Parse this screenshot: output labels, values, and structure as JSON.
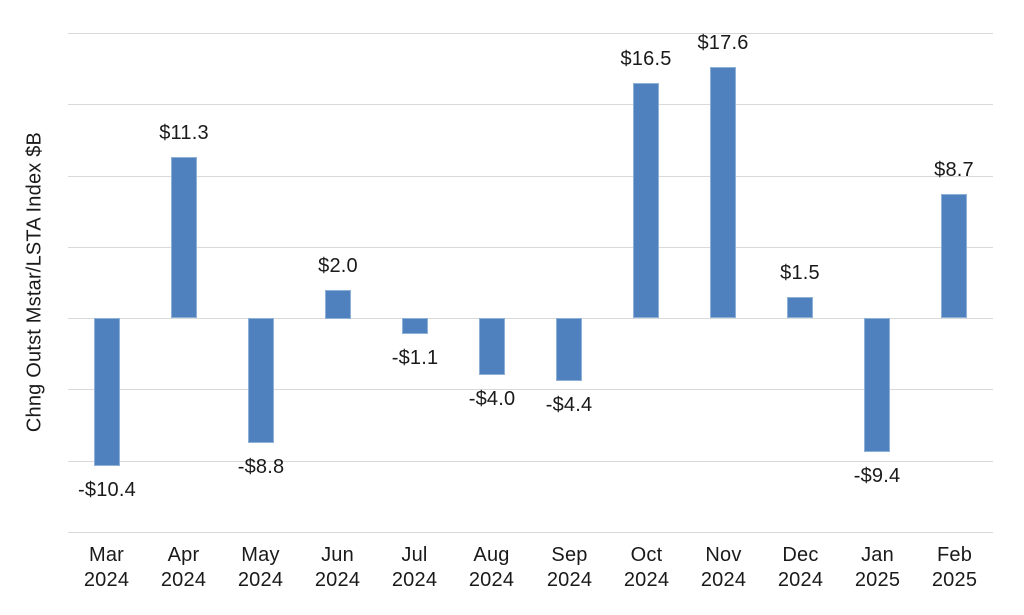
{
  "chart_data": {
    "type": "bar",
    "title": "",
    "xlabel": "",
    "ylabel": "Chng Outst Mstar/LSTA Index $B",
    "categories": [
      {
        "month": "Mar",
        "year": "2024"
      },
      {
        "month": "Apr",
        "year": "2024"
      },
      {
        "month": "May",
        "year": "2024"
      },
      {
        "month": "Jun",
        "year": "2024"
      },
      {
        "month": "Jul",
        "year": "2024"
      },
      {
        "month": "Aug",
        "year": "2024"
      },
      {
        "month": "Sep",
        "year": "2024"
      },
      {
        "month": "Oct",
        "year": "2024"
      },
      {
        "month": "Nov",
        "year": "2024"
      },
      {
        "month": "Dec",
        "year": "2024"
      },
      {
        "month": "Jan",
        "year": "2025"
      },
      {
        "month": "Feb",
        "year": "2025"
      }
    ],
    "values": [
      -10.4,
      11.3,
      -8.8,
      2.0,
      -1.1,
      -4.0,
      -4.4,
      16.5,
      17.6,
      1.5,
      -9.4,
      8.7
    ],
    "data_labels": [
      "-$10.4",
      "$11.3",
      "-$8.8",
      "$2.0",
      "-$1.1",
      "-$4.0",
      "-$4.4",
      "$16.5",
      "$17.6",
      "$1.5",
      "-$9.4",
      "$8.7"
    ],
    "ylim": [
      -15,
      20
    ],
    "gridline_step": 5,
    "grid": true,
    "legend_position": "none",
    "y_tick_labels_shown": false,
    "colors": {
      "bar_fill": "#4e81bd",
      "bar_border": "#8fb0d5",
      "gridline": "#d9d9d9",
      "text": "#1a1a1a",
      "background": "#ffffff"
    }
  }
}
